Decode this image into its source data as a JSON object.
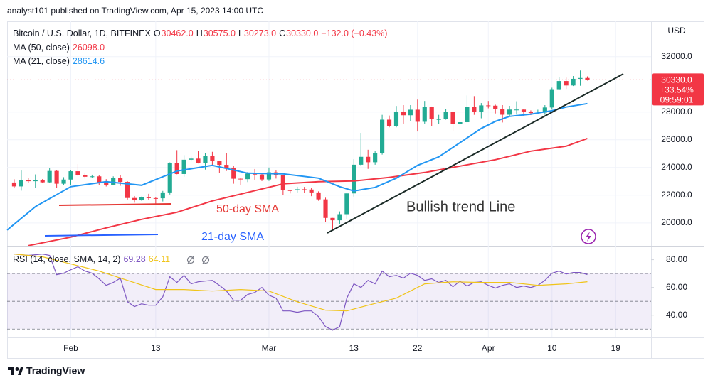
{
  "header": {
    "publisher": "analyst101 published on TradingView.com, Apr 15, 2023 14:00 UTC"
  },
  "footer": {
    "brand": "TradingView"
  },
  "chart_data": [
    {
      "type": "candlestick",
      "symbol": "Bitcoin / U.S. Dollar, 1D, BITFINEX",
      "legend_ohlc": [
        {
          "key": "O",
          "value": "30462.0"
        },
        {
          "key": "H",
          "value": "30575.0"
        },
        {
          "key": "L",
          "value": "30273.0"
        },
        {
          "key": "C",
          "value": "30330.0"
        }
      ],
      "change": "−132.0 (−0.43%)",
      "currency": "USD",
      "xlim": [
        -9,
        82
      ],
      "xticks": [
        {
          "value": 0,
          "label": "Feb"
        },
        {
          "value": 12,
          "label": "13"
        },
        {
          "value": 28,
          "label": "Mar"
        },
        {
          "value": 40,
          "label": "13"
        },
        {
          "value": 49,
          "label": "22"
        },
        {
          "value": 59,
          "label": "Apr"
        },
        {
          "value": 68,
          "label": "10"
        },
        {
          "value": 77,
          "label": "19"
        }
      ],
      "ylim": [
        18350,
        34550
      ],
      "yticks": [
        {
          "value": 20000,
          "label": "20000.0"
        },
        {
          "value": 22000,
          "label": "22000.0"
        },
        {
          "value": 24000,
          "label": "24000.0"
        },
        {
          "value": 26000,
          "label": "26000.0"
        },
        {
          "value": 28000,
          "label": "28000.0"
        },
        {
          "value": 32000,
          "label": "32000.0"
        }
      ],
      "grid": true,
      "up_color": "#22ab94",
      "down_color": "#f23645",
      "x": [
        -8,
        -7,
        -6,
        -5,
        -4,
        -3,
        -2,
        -1,
        0,
        1,
        2,
        3,
        4,
        5,
        6,
        7,
        8,
        9,
        10,
        11,
        12,
        13,
        14,
        15,
        16,
        17,
        18,
        19,
        20,
        21,
        22,
        23,
        24,
        25,
        26,
        27,
        28,
        29,
        30,
        31,
        32,
        33,
        34,
        35,
        36,
        37,
        38,
        39,
        40,
        41,
        42,
        43,
        44,
        45,
        46,
        47,
        48,
        49,
        50,
        51,
        52,
        53,
        54,
        55,
        56,
        57,
        58,
        59,
        60,
        61,
        62,
        63,
        64,
        65,
        66,
        67,
        68,
        69,
        70,
        71,
        72,
        73
      ],
      "open": [
        22917,
        22635,
        23070,
        23010,
        23080,
        22930,
        23750,
        22830,
        23130,
        23730,
        23430,
        23330,
        23360,
        22940,
        22760,
        23250,
        22960,
        21800,
        21630,
        21860,
        21790,
        21780,
        22200,
        24330,
        23530,
        24560,
        24640,
        24300,
        24840,
        24450,
        24190,
        23950,
        23190,
        23160,
        23560,
        23490,
        23140,
        23650,
        23470,
        22360,
        22350,
        22430,
        22410,
        22200,
        21700,
        20360,
        20190,
        20630,
        22130,
        24200,
        24770,
        24380,
        25060,
        27450,
        26970,
        28040,
        27770,
        28170,
        27300,
        28350,
        27480,
        27490,
        27990,
        27140,
        27270,
        28360,
        28040,
        28480,
        28460,
        28200,
        27810,
        28180,
        28180,
        28040,
        27930,
        27960,
        28330,
        29650,
        30240,
        29920,
        30400,
        30462
      ],
      "high": [
        23150,
        23780,
        23260,
        23500,
        23170,
        23960,
        23800,
        23300,
        23800,
        24240,
        23580,
        23480,
        23430,
        23160,
        23360,
        23450,
        23010,
        21940,
        21900,
        22100,
        21860,
        22310,
        24370,
        25250,
        24890,
        24790,
        25180,
        25050,
        25130,
        24470,
        25030,
        24120,
        23220,
        23680,
        23890,
        23600,
        24000,
        23780,
        23480,
        22400,
        22610,
        22600,
        22530,
        22280,
        21820,
        20360,
        20830,
        22180,
        24600,
        26500,
        25280,
        25200,
        27800,
        27750,
        28440,
        28500,
        28500,
        28900,
        28800,
        28400,
        27800,
        28200,
        28050,
        27500,
        29200,
        29150,
        28650,
        28800,
        28530,
        28500,
        28450,
        28780,
        28190,
        28120,
        28170,
        28500,
        29760,
        30550,
        30490,
        30600,
        31000,
        30575
      ],
      "low": [
        22500,
        22330,
        22870,
        22550,
        22860,
        22890,
        22530,
        22740,
        22760,
        23380,
        23200,
        23270,
        22760,
        22630,
        22740,
        22680,
        21690,
        21460,
        21600,
        21640,
        21360,
        21550,
        22050,
        23510,
        23340,
        24440,
        24290,
        23850,
        24150,
        23600,
        23750,
        22830,
        22760,
        22950,
        23120,
        23020,
        23030,
        23200,
        22000,
        22130,
        22200,
        22170,
        21930,
        21600,
        20060,
        19570,
        19920,
        20300,
        21900,
        24100,
        23900,
        24200,
        24930,
        26900,
        26900,
        27170,
        27350,
        26600,
        27170,
        27000,
        27130,
        27450,
        26600,
        26700,
        27250,
        27800,
        27550,
        28270,
        27900,
        27250,
        27680,
        27820,
        27730,
        27780,
        27880,
        27810,
        28180,
        29600,
        29670,
        29880,
        29900,
        30273
      ],
      "close": [
        22635,
        23070,
        23010,
        23080,
        22930,
        23750,
        22830,
        23130,
        23730,
        23430,
        23330,
        23360,
        22940,
        22760,
        23250,
        22960,
        21800,
        21630,
        21860,
        21790,
        21780,
        22200,
        24330,
        23530,
        24560,
        24640,
        24300,
        24840,
        24450,
        24190,
        23950,
        23190,
        23160,
        23560,
        23490,
        23140,
        23650,
        23470,
        22360,
        22350,
        22430,
        22410,
        22200,
        21700,
        20360,
        20190,
        20630,
        22130,
        24200,
        24770,
        24380,
        25060,
        27450,
        26970,
        28040,
        27770,
        28170,
        27300,
        28350,
        27480,
        27490,
        27990,
        27140,
        27270,
        28360,
        28040,
        28480,
        28460,
        28200,
        27810,
        28180,
        28180,
        28040,
        27930,
        27960,
        28330,
        29650,
        30240,
        29920,
        30400,
        30460,
        30330
      ],
      "overlays": [
        {
          "name": "MA (50, close)",
          "value_label": "26098.0",
          "color": "#f23645",
          "x": [
            -6,
            0,
            5,
            10,
            15,
            20,
            25,
            30,
            35,
            40,
            45,
            50,
            55,
            60,
            65,
            70,
            73
          ],
          "values": [
            18360,
            18975,
            19640,
            20255,
            20770,
            21590,
            22205,
            22820,
            22975,
            23025,
            23280,
            23640,
            24100,
            24565,
            25180,
            25540,
            26098
          ]
        },
        {
          "name": "MA (21, close)",
          "value_label": "28614.6",
          "color": "#2196f3",
          "x": [
            -9,
            -5,
            0,
            5,
            10,
            15,
            20,
            25,
            30,
            35,
            38,
            40,
            43,
            46,
            49,
            52,
            55,
            58,
            60,
            62,
            65,
            68,
            70,
            73
          ],
          "values": [
            19490,
            21180,
            22615,
            22975,
            22720,
            23745,
            24155,
            23590,
            23540,
            23230,
            22615,
            22310,
            22565,
            23230,
            24155,
            24770,
            25795,
            26820,
            27330,
            27690,
            27850,
            28100,
            28360,
            28614.6
          ]
        }
      ],
      "last_price": {
        "value": 30330,
        "labels": [
          "30330.0",
          "+33.54%",
          "09:59:01"
        ]
      },
      "annotations": [
        "50-day SMA",
        "21-day SMA",
        "Bullish trend Line"
      ]
    },
    {
      "type": "line",
      "title": "RSI (14, close, SMA, 14, 2)",
      "xlim": [
        -9,
        82
      ],
      "ylim": [
        24,
        89
      ],
      "yticks": [
        {
          "value": 40,
          "label": "40.00"
        },
        {
          "value": 60,
          "label": "60.00"
        },
        {
          "value": 80,
          "label": "80.00"
        }
      ],
      "band": [
        30,
        70
      ],
      "band_color": "#7e57c2",
      "levels": [
        30,
        50,
        70
      ],
      "series": [
        {
          "value_label": "69.28",
          "color": "#7e57c2",
          "x": [
            -8,
            -7,
            -6,
            -5,
            -4,
            -3,
            -2,
            -1,
            0,
            1,
            2,
            3,
            4,
            5,
            6,
            7,
            8,
            9,
            10,
            11,
            12,
            13,
            14,
            15,
            16,
            17,
            18,
            19,
            20,
            21,
            22,
            23,
            24,
            25,
            26,
            27,
            28,
            29,
            30,
            31,
            32,
            33,
            34,
            35,
            36,
            37,
            38,
            39,
            40,
            41,
            42,
            43,
            44,
            45,
            46,
            47,
            48,
            49,
            50,
            51,
            52,
            53,
            54,
            55,
            56,
            57,
            58,
            59,
            60,
            61,
            62,
            63,
            64,
            65,
            66,
            67,
            68,
            69,
            70,
            71,
            72,
            73
          ],
          "values": [
            84.1,
            83.6,
            83.1,
            83.6,
            84.1,
            83.1,
            69.2,
            70.3,
            72.8,
            74.9,
            71.8,
            70.3,
            66.2,
            61.5,
            63.6,
            66.7,
            49.7,
            46.2,
            48.2,
            47.2,
            47.2,
            53.3,
            67.7,
            63.6,
            68.7,
            62.6,
            64.1,
            64.6,
            65.1,
            61.5,
            57.4,
            50.8,
            50.8,
            54.9,
            56.4,
            60.0,
            54.4,
            52.3,
            43.1,
            43.1,
            42.1,
            43.1,
            43.1,
            39.0,
            31.8,
            29.2,
            31.8,
            52.3,
            62.6,
            60.0,
            65.1,
            62.6,
            71.8,
            67.7,
            68.7,
            66.7,
            70.3,
            68.7,
            65.1,
            66.2,
            63.6,
            65.1,
            60.5,
            64.6,
            61.0,
            63.6,
            64.1,
            61.5,
            59.5,
            61.5,
            62.6,
            60.0,
            61.0,
            60.0,
            61.5,
            65.1,
            70.3,
            71.8,
            69.7,
            70.8,
            70.8,
            69.28
          ]
        },
        {
          "value_label": "64.11",
          "color": "#f0c419",
          "x": [
            -8,
            -4,
            0,
            4,
            8,
            12,
            16,
            20,
            24,
            28,
            32,
            36,
            39,
            42,
            46,
            50,
            54,
            58,
            62,
            66,
            70,
            73
          ],
          "values": [
            84.1,
            82.1,
            76.9,
            71.8,
            65.1,
            58.5,
            58.5,
            57.4,
            58.5,
            57.4,
            49.7,
            43.6,
            43.1,
            47.2,
            52.3,
            62.6,
            64.1,
            63.6,
            63.6,
            61.5,
            62.6,
            64.11
          ]
        }
      ]
    }
  ]
}
